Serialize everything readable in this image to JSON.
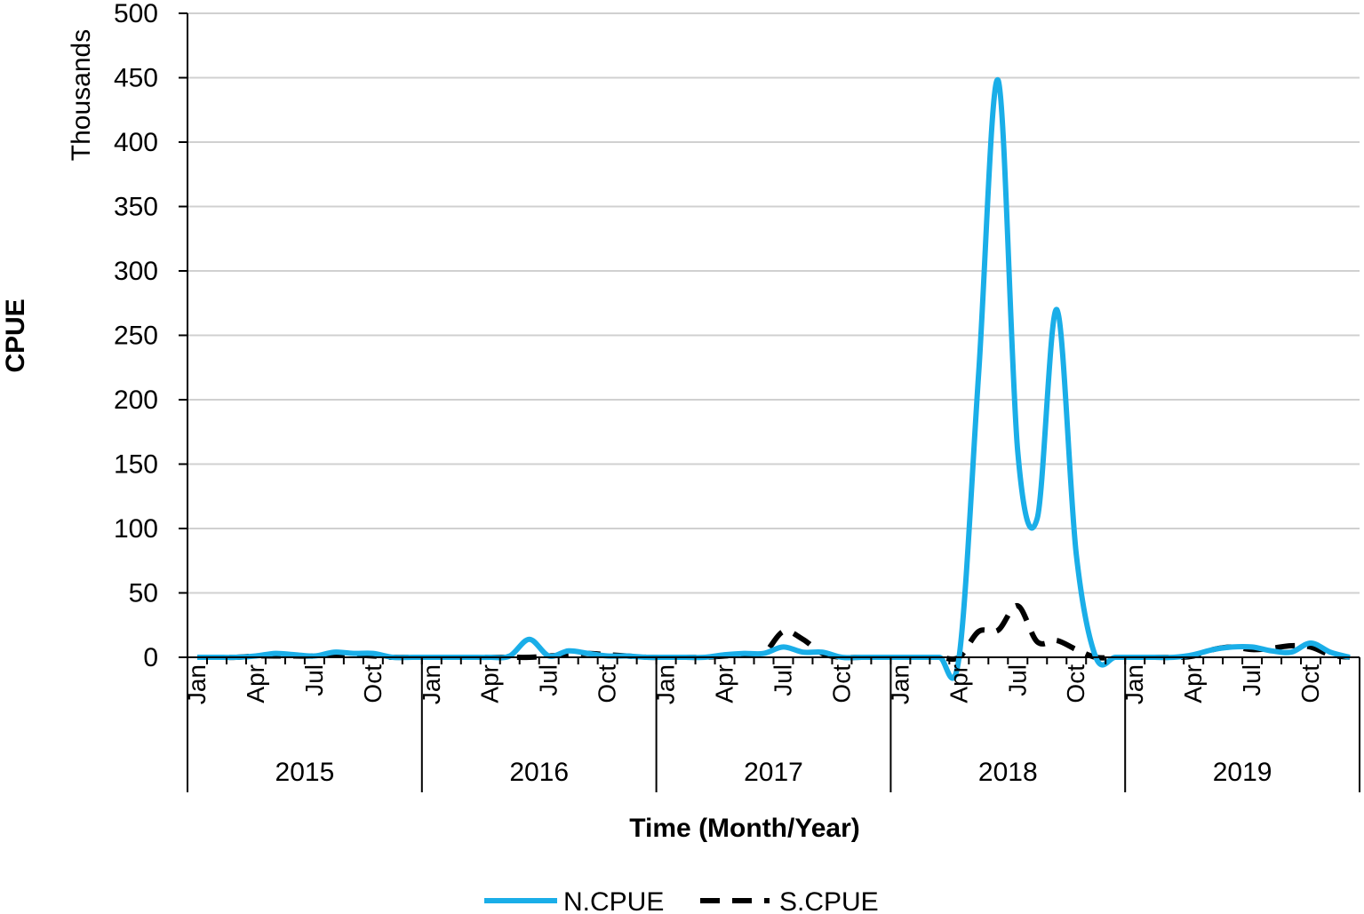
{
  "chart_data": {
    "type": "line",
    "title": "",
    "ylabel": "CPUE",
    "ylabel_unit": "Thousands",
    "xlabel": "Time (Month/Year)",
    "ylim": [
      0,
      500
    ],
    "yticks": [
      "0",
      "50",
      "100",
      "150",
      "200",
      "250",
      "300",
      "350",
      "400",
      "450",
      "500"
    ],
    "grid": true,
    "legend_position": "bottom",
    "years": [
      "2015",
      "2016",
      "2017",
      "2018",
      "2019"
    ],
    "month_labels": [
      "Jan",
      "Apr",
      "Jul",
      "Oct"
    ],
    "month_label_indices": [
      0,
      3,
      6,
      9
    ],
    "x_unit": "month index (Jan 2015 = 0)",
    "series": [
      {
        "name": "N.CPUE",
        "color": "#1AAEE8",
        "style": "solid",
        "values": [
          0,
          0,
          0,
          1,
          3,
          2,
          1,
          4,
          3,
          3,
          0,
          0,
          0,
          0,
          0,
          0,
          1,
          14,
          1,
          5,
          3,
          1,
          1,
          0,
          0,
          0,
          0,
          2,
          3,
          3,
          8,
          4,
          4,
          0,
          0,
          0,
          0,
          0,
          0,
          0,
          220,
          448,
          160,
          108,
          270,
          80,
          0,
          0,
          0,
          0,
          0,
          2,
          6,
          8,
          8,
          5,
          4,
          11,
          4,
          0
        ]
      },
      {
        "name": "S.CPUE",
        "color": "#000000",
        "style": "dashed",
        "values": [
          0,
          0,
          0,
          1,
          1,
          1,
          1,
          2,
          2,
          1,
          0,
          0,
          0,
          0,
          0,
          0,
          0,
          0,
          1,
          2,
          3,
          2,
          1,
          0,
          0,
          0,
          0,
          1,
          2,
          3,
          20,
          14,
          3,
          0,
          0,
          0,
          0,
          0,
          0,
          0,
          20,
          21,
          40,
          12,
          13,
          6,
          0,
          0,
          0,
          0,
          0,
          1,
          6,
          8,
          6,
          7,
          9,
          8,
          2,
          0
        ]
      }
    ]
  }
}
